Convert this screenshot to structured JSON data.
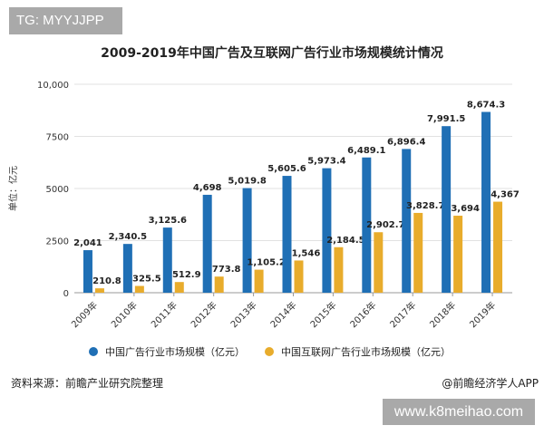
{
  "badges": {
    "top_left": "TG: MYYJJPP",
    "bottom_right": "www.k8meihao.com"
  },
  "footer": {
    "source": "资料来源：前瞻产业研究院整理",
    "credit": "@前瞻经济学人APP"
  },
  "chart_data": {
    "type": "bar",
    "title": "2009-2019年中国广告及互联网广告行业市场规模统计情况",
    "ylabel": "单位：亿元",
    "ylim": [
      0,
      10000
    ],
    "yticks": [
      0,
      2500,
      5000,
      7500,
      10000
    ],
    "ytick_labels": [
      "0",
      "2500",
      "5000",
      "7500",
      "10,000"
    ],
    "grid": true,
    "legend": "bottom",
    "categories": [
      "2009年",
      "2010年",
      "2011年",
      "2012年",
      "2013年",
      "2014年",
      "2015年",
      "2016年",
      "2017年",
      "2018年",
      "2019年"
    ],
    "series": [
      {
        "name": "中国广告行业市场规模（亿元）",
        "color": "#1f6fb5",
        "values": [
          2041,
          2340.5,
          3125.6,
          4698,
          5019.8,
          5605.6,
          5973.4,
          6489.1,
          6896.4,
          7991.5,
          8674.3
        ],
        "labels": [
          "2,041",
          "2,340.5",
          "3,125.6",
          "4,698",
          "5,019.8",
          "5,605.6",
          "5,973.4",
          "6,489.1",
          "6,896.4",
          "7,991.5",
          "8,674.3"
        ]
      },
      {
        "name": "中国互联网广告行业市场规模（亿元）",
        "color": "#e8ac2c",
        "values": [
          210.8,
          325.5,
          512.9,
          773.8,
          1105.2,
          1546,
          2184.5,
          2902.7,
          3828.7,
          3694,
          4367
        ],
        "labels": [
          "210.8",
          "325.5",
          "512.9",
          "773.8",
          "1,105.2",
          "1,546",
          "2,184.5",
          "2,902.7",
          "3,828.7",
          "3,694",
          "4,367"
        ]
      }
    ]
  }
}
